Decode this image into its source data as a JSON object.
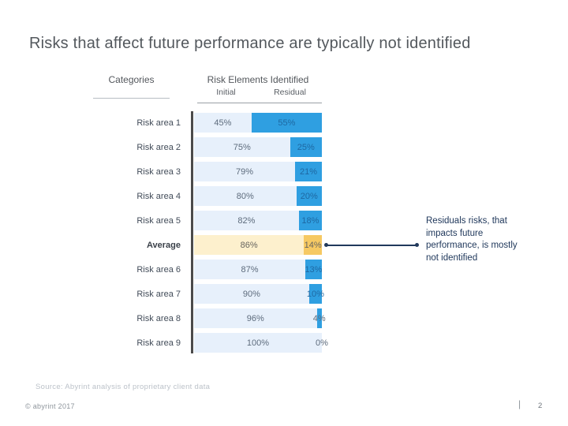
{
  "slide": {
    "title": "Risks that affect future performance are typically not identified",
    "source_note": "Source: Abyrint analysis of proprietary client data",
    "copyright": "© abyrint 2017",
    "page_separator": "|",
    "page_number": "2"
  },
  "table": {
    "categories_header": "Categories",
    "risk_elements_header": "Risk Elements Identified",
    "initial_header": "Initial",
    "residual_header": "Residual"
  },
  "annotation": {
    "text": "Residuals risks, that\nimpacts future\nperformance, is mostly\nnot identified"
  },
  "chart_data": {
    "type": "bar",
    "variant": "horizontal-stacked-100percent",
    "series": [
      {
        "name": "Initial"
      },
      {
        "name": "Residual"
      }
    ],
    "xlim": [
      0,
      100
    ],
    "rows": [
      {
        "label": "Risk area 1",
        "initial": 45,
        "residual": 55,
        "initial_label": "45%",
        "residual_label": "55%",
        "highlight": false
      },
      {
        "label": "Risk area 2",
        "initial": 75,
        "residual": 25,
        "initial_label": "75%",
        "residual_label": "25%",
        "highlight": false
      },
      {
        "label": "Risk area 3",
        "initial": 79,
        "residual": 21,
        "initial_label": "79%",
        "residual_label": "21%",
        "highlight": false
      },
      {
        "label": "Risk area 4",
        "initial": 80,
        "residual": 20,
        "initial_label": "80%",
        "residual_label": "20%",
        "highlight": false
      },
      {
        "label": "Risk area 5",
        "initial": 82,
        "residual": 18,
        "initial_label": "82%",
        "residual_label": "18%",
        "highlight": false
      },
      {
        "label": "Average",
        "initial": 86,
        "residual": 14,
        "initial_label": "86%",
        "residual_label": "14%",
        "highlight": true
      },
      {
        "label": "Risk area 6",
        "initial": 87,
        "residual": 13,
        "initial_label": "87%",
        "residual_label": "13%",
        "highlight": false
      },
      {
        "label": "Risk area 7",
        "initial": 90,
        "residual": 10,
        "initial_label": "90%",
        "residual_label": "10%",
        "highlight": false
      },
      {
        "label": "Risk area 8",
        "initial": 96,
        "residual": 4,
        "initial_label": "96%",
        "residual_label": "4%",
        "highlight": false
      },
      {
        "label": "Risk area 9",
        "initial": 100,
        "residual": 0,
        "initial_label": "100%",
        "residual_label": "0%",
        "highlight": false
      }
    ],
    "colors": {
      "initial_bar": "#e7f0fb",
      "residual_bar": "#2f9fe1",
      "highlight_initial_bar": "#fdf0cd",
      "highlight_residual_bar": "#f6c963",
      "initial_label_text": "#5e6c7d",
      "residual_label_text": "#1e68a2",
      "highlight_label_text": "#66645f",
      "axis_line": "#4b4b4b",
      "annotation": "#21395c"
    }
  }
}
